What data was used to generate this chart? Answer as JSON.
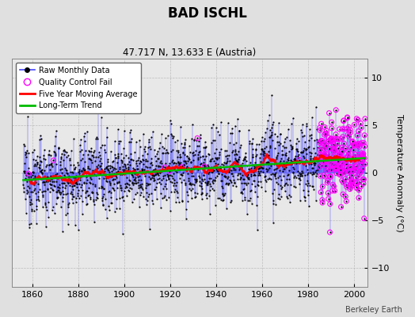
{
  "title": "BAD ISCHL",
  "subtitle": "47.717 N, 13.633 E (Austria)",
  "ylabel": "Temperature Anomaly (°C)",
  "credit": "Berkeley Earth",
  "year_start": 1856,
  "year_end": 2005,
  "ylim": [
    -12,
    12
  ],
  "yticks": [
    -10,
    -5,
    0,
    5,
    10
  ],
  "xticks": [
    1860,
    1880,
    1900,
    1920,
    1940,
    1960,
    1980,
    2000
  ],
  "xlim_left": 1851,
  "xlim_right": 2006,
  "raw_color": "#4444ff",
  "marker_color": "#000000",
  "qc_color": "#ff00ff",
  "moving_avg_color": "#ff0000",
  "trend_color": "#00bb00",
  "bg_color": "#e0e0e0",
  "plot_bg": "#e8e8e8",
  "seed": 12345,
  "n_qc_early": 8,
  "n_qc_late": 120,
  "qc_late_start": 1985
}
